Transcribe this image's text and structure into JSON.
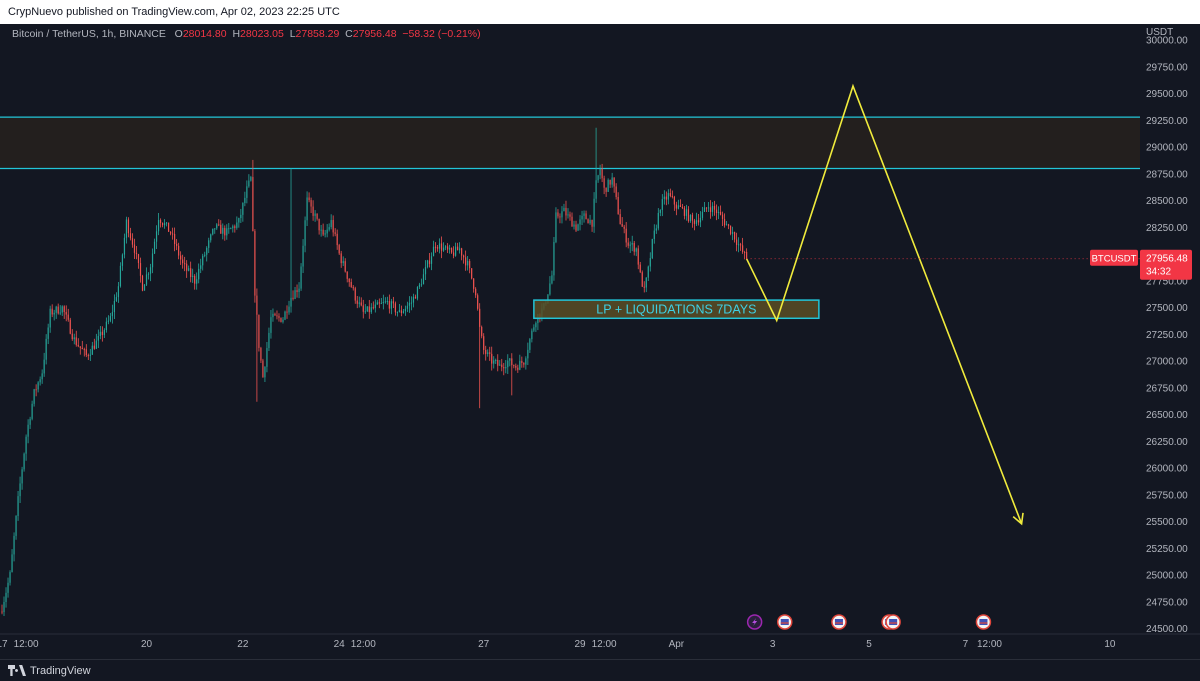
{
  "header": {
    "published_text": "CrypNuevo published on TradingView.com, Apr 02, 2023 22:25 UTC"
  },
  "legend": {
    "symbol_text": "Bitcoin / TetherUS, 1h, BINANCE",
    "open_label": "O",
    "open_value": "28014.80",
    "high_label": "H",
    "high_value": "28023.05",
    "low_label": "L",
    "low_value": "27858.29",
    "close_label": "C",
    "close_value": "27956.48",
    "change": "−58.32 (−0.21%)"
  },
  "footer": {
    "brand": "TradingView"
  },
  "colors": {
    "up": "#26a69a",
    "down": "#ef5350",
    "zone_line": "#22c5d8",
    "zone_fill": "#231f1e",
    "projection": "#f0eb3c",
    "price_badge": "#f23645"
  },
  "chart_data": {
    "type": "candlestick",
    "currency_label": "USDT",
    "y_axis_ticks": [
      "30000.00",
      "29750.00",
      "29500.00",
      "29250.00",
      "29000.00",
      "28750.00",
      "28500.00",
      "28250.00",
      "28000.00",
      "27750.00",
      "27500.00",
      "27250.00",
      "27000.00",
      "26750.00",
      "26500.00",
      "26250.00",
      "26000.00",
      "25750.00",
      "25500.00",
      "25250.00",
      "25000.00",
      "24750.00",
      "24500.00"
    ],
    "ylim": [
      24450,
      30150
    ],
    "x_axis_ticks": [
      {
        "label": "17",
        "t": 0
      },
      {
        "label": "12:00",
        "t": 12
      },
      {
        "label": "20",
        "t": 72
      },
      {
        "label": "22",
        "t": 120
      },
      {
        "label": "24",
        "t": 168
      },
      {
        "label": "12:00",
        "t": 180
      },
      {
        "label": "27",
        "t": 240
      },
      {
        "label": "29",
        "t": 288
      },
      {
        "label": "12:00",
        "t": 300
      },
      {
        "label": "Apr",
        "t": 336
      },
      {
        "label": "3",
        "t": 384
      },
      {
        "label": "5",
        "t": 432
      },
      {
        "label": "7",
        "t": 480
      },
      {
        "label": "12:00",
        "t": 492
      },
      {
        "label": "10",
        "t": 552
      }
    ],
    "xlim": [
      -1,
      567
    ],
    "candle_anchors": [
      [
        0,
        24700
      ],
      [
        4,
        25000
      ],
      [
        8,
        25700
      ],
      [
        12,
        26300
      ],
      [
        16,
        26700
      ],
      [
        20,
        26900
      ],
      [
        24,
        27450
      ],
      [
        30,
        27500
      ],
      [
        36,
        27200
      ],
      [
        42,
        27050
      ],
      [
        48,
        27200
      ],
      [
        54,
        27400
      ],
      [
        58,
        27700
      ],
      [
        62,
        28300
      ],
      [
        66,
        28050
      ],
      [
        70,
        27700
      ],
      [
        74,
        27900
      ],
      [
        78,
        28350
      ],
      [
        84,
        28200
      ],
      [
        90,
        27900
      ],
      [
        96,
        27750
      ],
      [
        100,
        27950
      ],
      [
        106,
        28250
      ],
      [
        112,
        28200
      ],
      [
        118,
        28300
      ],
      [
        122,
        28600
      ],
      [
        124,
        28700
      ],
      [
        126,
        27650
      ],
      [
        128,
        27150
      ],
      [
        130,
        26850
      ],
      [
        134,
        27400
      ],
      [
        140,
        27400
      ],
      [
        144,
        27600
      ],
      [
        148,
        27700
      ],
      [
        152,
        28500
      ],
      [
        156,
        28350
      ],
      [
        160,
        28150
      ],
      [
        164,
        28300
      ],
      [
        168,
        28000
      ],
      [
        172,
        27800
      ],
      [
        176,
        27600
      ],
      [
        180,
        27450
      ],
      [
        186,
        27500
      ],
      [
        192,
        27550
      ],
      [
        198,
        27450
      ],
      [
        204,
        27550
      ],
      [
        208,
        27700
      ],
      [
        212,
        27900
      ],
      [
        216,
        28100
      ],
      [
        220,
        28050
      ],
      [
        224,
        28000
      ],
      [
        228,
        28050
      ],
      [
        232,
        27900
      ],
      [
        236,
        27650
      ],
      [
        238,
        27300
      ],
      [
        240,
        27100
      ],
      [
        244,
        27000
      ],
      [
        248,
        26950
      ],
      [
        252,
        27000
      ],
      [
        256,
        26950
      ],
      [
        260,
        27000
      ],
      [
        266,
        27400
      ],
      [
        270,
        27500
      ],
      [
        274,
        27800
      ],
      [
        276,
        28350
      ],
      [
        280,
        28400
      ],
      [
        286,
        28250
      ],
      [
        290,
        28350
      ],
      [
        294,
        28300
      ],
      [
        296,
        28650
      ],
      [
        298,
        28800
      ],
      [
        300,
        28600
      ],
      [
        304,
        28700
      ],
      [
        308,
        28300
      ],
      [
        312,
        28100
      ],
      [
        316,
        28050
      ],
      [
        318,
        27800
      ],
      [
        320,
        27650
      ],
      [
        322,
        27850
      ],
      [
        324,
        28100
      ],
      [
        328,
        28450
      ],
      [
        332,
        28550
      ],
      [
        336,
        28450
      ],
      [
        340,
        28400
      ],
      [
        344,
        28300
      ],
      [
        348,
        28350
      ],
      [
        352,
        28450
      ],
      [
        356,
        28400
      ],
      [
        360,
        28300
      ],
      [
        364,
        28200
      ],
      [
        368,
        28050
      ],
      [
        371,
        27956
      ]
    ],
    "overlays": {
      "zone": {
        "top": 29280,
        "bottom": 28800,
        "t_start": -1,
        "t_end": 567
      },
      "lp_box": {
        "label": "LP + LIQUIDATIONS 7DAYS",
        "top": 27570,
        "bottom": 27400,
        "t_start": 265,
        "t_end": 407
      },
      "projection_path": [
        [
          371,
          27956
        ],
        [
          386,
          27380
        ],
        [
          424,
          29570
        ],
        [
          508,
          25480
        ]
      ]
    },
    "price_badge": {
      "symbol": "BTCUSDT",
      "price": "27956.48",
      "countdown": "34:32",
      "value": 27956.48
    }
  }
}
